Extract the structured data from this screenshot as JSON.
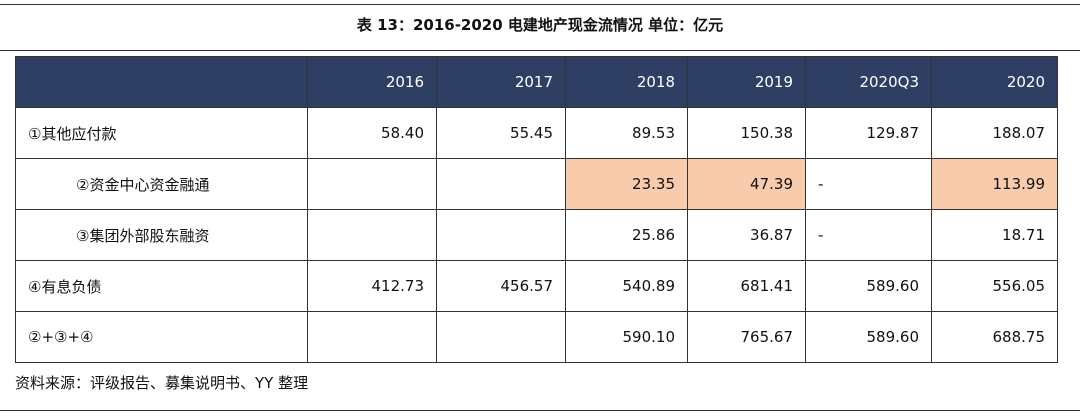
{
  "header": {
    "title": "表 13：2016-2020 电建地产现金流情况  单位：亿元"
  },
  "table": {
    "columns": [
      "2016",
      "2017",
      "2018",
      "2019",
      "2020Q3",
      "2020"
    ],
    "header_color": "#2e3f63",
    "highlight_color": "#f8cbad",
    "highlighted_cells": [
      [
        1,
        2
      ],
      [
        1,
        3
      ],
      [
        1,
        5
      ]
    ],
    "rows": [
      {
        "label": "①其他应付款",
        "indent": false,
        "cells": [
          "58.40",
          "55.45",
          "89.53",
          "150.38",
          "129.87",
          "188.07"
        ]
      },
      {
        "label": "②资金中心资金融通",
        "indent": true,
        "cells": [
          null,
          null,
          "23.35",
          "47.39",
          "-",
          "113.99"
        ]
      },
      {
        "label": "③集团外部股东融资",
        "indent": true,
        "cells": [
          null,
          null,
          "25.86",
          "36.87",
          "-",
          "18.71"
        ]
      },
      {
        "label": "④有息负债",
        "indent": false,
        "cells": [
          "412.73",
          "456.57",
          "540.89",
          "681.41",
          "589.60",
          "556.05"
        ]
      },
      {
        "label": "②+③+④",
        "indent": false,
        "cells": [
          null,
          null,
          "590.10",
          "765.67",
          "589.60",
          "688.75"
        ]
      }
    ]
  },
  "footer": {
    "source": "资料来源：评级报告、募集说明书、YY 整理"
  }
}
